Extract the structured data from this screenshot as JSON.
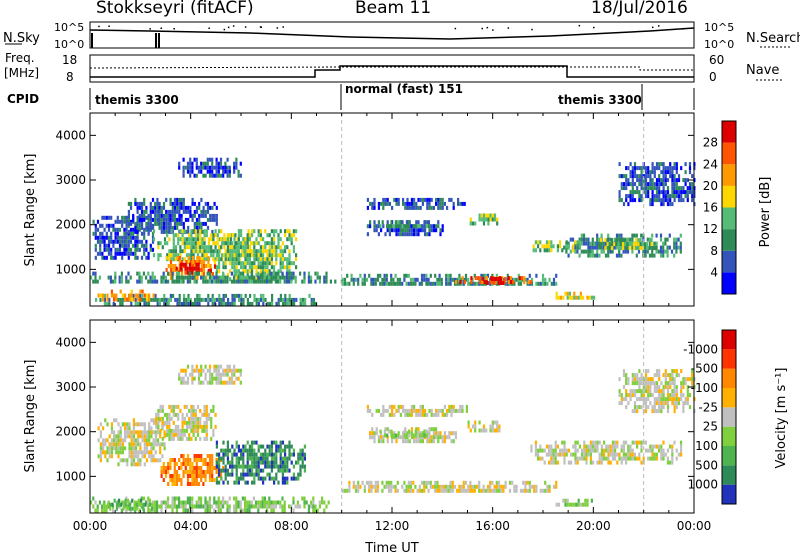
{
  "header": {
    "station": "Stokkseyri (fitACF)",
    "beam": "Beam 11",
    "date": "18/Jul/2016"
  },
  "strip_nsky": {
    "left_label": "N.Sky",
    "right_label": "N.Search",
    "left_ticks": [
      "10^5",
      "10^0"
    ],
    "right_ticks": [
      "10^5",
      "10^0"
    ]
  },
  "strip_freq": {
    "left_label_1": "Freq.",
    "left_label_2": "[MHz]",
    "left_ticks": [
      "18",
      "8"
    ],
    "right_label": "Nave",
    "right_ticks": [
      "60",
      "0"
    ]
  },
  "strip_cpid": {
    "label": "CPID",
    "segments": [
      {
        "label": "themis 3300",
        "start_h": 0,
        "end_h": 10
      },
      {
        "label": "normal (fast) 151",
        "start_h": 10,
        "end_h": 22
      },
      {
        "label": "themis 3300",
        "start_h": 22,
        "end_h": 24
      }
    ]
  },
  "chart_data": [
    {
      "type": "heatmap",
      "title": "Power",
      "xlabel": "",
      "ylabel": "Slant Range [km]",
      "xlim_hours": [
        0,
        24
      ],
      "ylim": [
        180,
        4500
      ],
      "x_ticks": [
        "00:00",
        "04:00",
        "08:00",
        "12:00",
        "16:00",
        "20:00",
        "00:00"
      ],
      "y_ticks": [
        1000,
        2000,
        3000,
        4000
      ],
      "colorbar": {
        "label": "Power [dB]",
        "ticks": [
          4,
          8,
          12,
          16,
          20,
          24,
          28
        ],
        "colors": [
          "#0000ff",
          "#3355bb",
          "#2e8b57",
          "#55bb77",
          "#ffd700",
          "#ff9900",
          "#ff5500",
          "#dd0000"
        ]
      },
      "regions": [
        {
          "t0": 0.2,
          "t1": 9.0,
          "r0": 200,
          "r1": 450,
          "level": 2
        },
        {
          "t0": 0.3,
          "t1": 2.5,
          "r0": 350,
          "r1": 550,
          "level": 5
        },
        {
          "t0": 0.1,
          "t1": 2.5,
          "r0": 1300,
          "r1": 2200,
          "level": 1
        },
        {
          "t0": 1.5,
          "t1": 5.0,
          "r0": 1800,
          "r1": 2600,
          "level": 1
        },
        {
          "t0": 2.5,
          "t1": 6.5,
          "r0": 1200,
          "r1": 1900,
          "level": 3
        },
        {
          "t0": 3.0,
          "t1": 5.0,
          "r0": 850,
          "r1": 1300,
          "level": 5
        },
        {
          "t0": 3.4,
          "t1": 4.4,
          "r0": 900,
          "r1": 1150,
          "level": 7
        },
        {
          "t0": 4.5,
          "t1": 5.0,
          "r0": 950,
          "r1": 1100,
          "level": 7
        },
        {
          "t0": 5.0,
          "t1": 8.2,
          "r0": 800,
          "r1": 1900,
          "level": 3
        },
        {
          "t0": 0.0,
          "t1": 10.0,
          "r0": 700,
          "r1": 950,
          "level": 2
        },
        {
          "t0": 3.5,
          "t1": 6.0,
          "r0": 3100,
          "r1": 3500,
          "level": 1
        },
        {
          "t0": 10.0,
          "t1": 18.5,
          "r0": 650,
          "r1": 900,
          "level": 2
        },
        {
          "t0": 14.5,
          "t1": 17.5,
          "r0": 700,
          "r1": 850,
          "level": 6
        },
        {
          "t0": 15.5,
          "t1": 16.8,
          "r0": 740,
          "r1": 830,
          "level": 7
        },
        {
          "t0": 11.0,
          "t1": 14.0,
          "r0": 1750,
          "r1": 2100,
          "level": 1
        },
        {
          "t0": 11.5,
          "t1": 13.5,
          "r0": 1950,
          "r1": 2100,
          "level": 2
        },
        {
          "t0": 15.0,
          "t1": 16.3,
          "r0": 2050,
          "r1": 2250,
          "level": 3
        },
        {
          "t0": 11.0,
          "t1": 15.0,
          "r0": 2400,
          "r1": 2600,
          "level": 1
        },
        {
          "t0": 18.8,
          "t1": 23.5,
          "r0": 1350,
          "r1": 1800,
          "level": 2
        },
        {
          "t0": 20.0,
          "t1": 22.5,
          "r0": 1500,
          "r1": 1700,
          "level": 3
        },
        {
          "t0": 17.5,
          "t1": 19.5,
          "r0": 1450,
          "r1": 1650,
          "level": 3
        },
        {
          "t0": 21.0,
          "t1": 24.0,
          "r0": 2500,
          "r1": 3400,
          "level": 1
        },
        {
          "t0": 18.5,
          "t1": 20.0,
          "r0": 350,
          "r1": 500,
          "level": 4
        }
      ]
    },
    {
      "type": "heatmap",
      "title": "Velocity",
      "xlabel": "Time UT",
      "ylabel": "Slant Range [km]",
      "xlim_hours": [
        0,
        24
      ],
      "ylim": [
        180,
        4500
      ],
      "x_ticks": [
        "00:00",
        "04:00",
        "08:00",
        "12:00",
        "16:00",
        "20:00",
        "00:00"
      ],
      "y_ticks": [
        1000,
        2000,
        3000,
        4000
      ],
      "colorbar": {
        "label": "Velocity [m s⁻¹]",
        "ticks": [
          1000,
          500,
          100,
          25,
          -25,
          -100,
          -500,
          -1000
        ],
        "colors": [
          "#2233bb",
          "#2e8b57",
          "#4fb34f",
          "#7fcf3f",
          "#c0c0c0",
          "#ffb000",
          "#ff8800",
          "#ff3300",
          "#dd0000"
        ]
      },
      "regions": [
        {
          "t0": 0.0,
          "t1": 9.5,
          "r0": 250,
          "r1": 550,
          "level": 3
        },
        {
          "t0": 0.5,
          "t1": 2.5,
          "r0": 300,
          "r1": 500,
          "level": 2
        },
        {
          "t0": 0.3,
          "t1": 3.0,
          "r0": 1300,
          "r1": 2300,
          "level": 4
        },
        {
          "t0": 2.8,
          "t1": 5.3,
          "r0": 850,
          "r1": 1500,
          "level": 6
        },
        {
          "t0": 5.0,
          "t1": 8.5,
          "r0": 900,
          "r1": 1800,
          "level": 1
        },
        {
          "t0": 2.5,
          "t1": 5.0,
          "r0": 1800,
          "r1": 2600,
          "level": 4
        },
        {
          "t0": 3.5,
          "t1": 6.0,
          "r0": 3100,
          "r1": 3500,
          "level": 4
        },
        {
          "t0": 10.0,
          "t1": 18.5,
          "r0": 650,
          "r1": 900,
          "level": 4
        },
        {
          "t0": 11.0,
          "t1": 14.5,
          "r0": 1750,
          "r1": 2100,
          "level": 4
        },
        {
          "t0": 11.5,
          "t1": 13.5,
          "r0": 1900,
          "r1": 2050,
          "level": 3
        },
        {
          "t0": 15.0,
          "t1": 16.3,
          "r0": 2050,
          "r1": 2250,
          "level": 4
        },
        {
          "t0": 11.0,
          "t1": 15.0,
          "r0": 2400,
          "r1": 2600,
          "level": 4
        },
        {
          "t0": 17.5,
          "t1": 23.5,
          "r0": 1350,
          "r1": 1800,
          "level": 4
        },
        {
          "t0": 21.0,
          "t1": 24.0,
          "r0": 2500,
          "r1": 3400,
          "level": 4
        },
        {
          "t0": 18.5,
          "t1": 20.0,
          "r0": 350,
          "r1": 500,
          "level": 3
        }
      ]
    }
  ]
}
